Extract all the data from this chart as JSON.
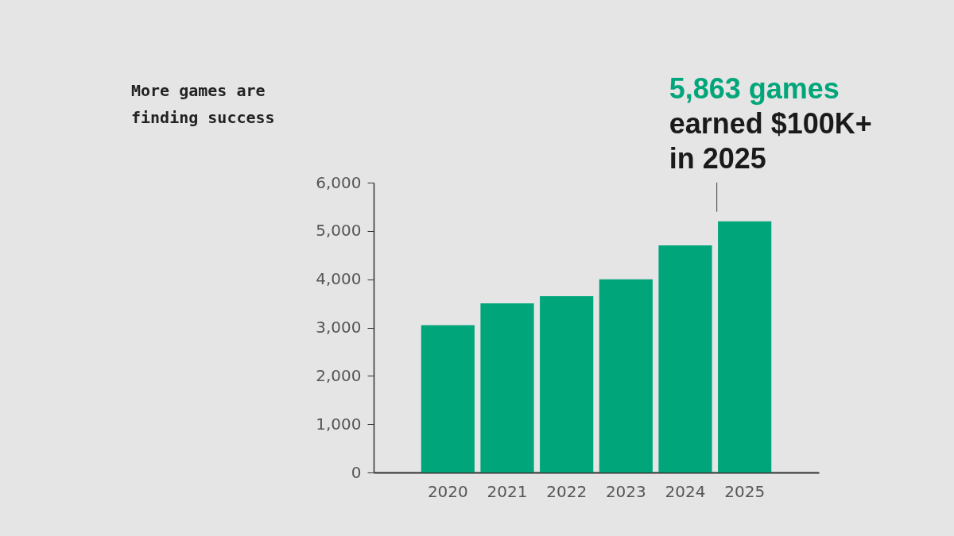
{
  "chart_data": {
    "type": "bar",
    "title": "More games are finding success",
    "categories": [
      "2020",
      "2021",
      "2022",
      "2023",
      "2024",
      "2025"
    ],
    "values": [
      3050,
      3500,
      3650,
      4000,
      4700,
      5200
    ],
    "color": "#00a67a",
    "ylim": [
      0,
      6000
    ],
    "yticks": [
      0,
      {
        "value": 1000,
        "label": "1,000"
      },
      {
        "value": 2000,
        "label": "2,000"
      },
      {
        "value": 3000,
        "label": "3,000"
      },
      {
        "value": 4000,
        "label": "4,000"
      },
      {
        "value": 5000,
        "label": "5,000"
      },
      {
        "value": 6000,
        "label": "6,000"
      }
    ],
    "annotations": [
      {
        "text": "5,863 games earned $100K+ in 2025",
        "x": "2025",
        "y": 5200
      }
    ],
    "grid": false
  }
}
